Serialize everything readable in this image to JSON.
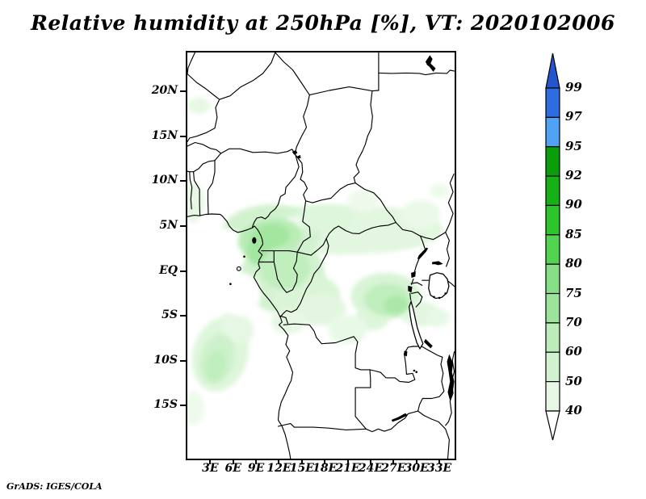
{
  "title": "Relative humidity at 250hPa [%], VT: 2020102006",
  "attribution": "GrADS: IGES/COLA",
  "chart_data": {
    "type": "heatmap",
    "title": "Relative humidity at 250hPa [%], VT: 2020102006",
    "variable": "Relative humidity",
    "level": "250hPa",
    "units": "%",
    "valid_time": "2020102006",
    "projection": "latlon",
    "lon_range_deg_east": [
      0,
      35
    ],
    "lat_range_deg": [
      -20.9,
      24.33
    ],
    "x_ticks": [
      "3E",
      "6E",
      "9E",
      "12E",
      "15E",
      "18E",
      "21E",
      "24E",
      "27E",
      "30E",
      "33E"
    ],
    "x_tick_lons": [
      3,
      6,
      9,
      12,
      15,
      18,
      21,
      24,
      27,
      30,
      33
    ],
    "y_ticks": [
      "20N",
      "15N",
      "10N",
      "5N",
      "EQ",
      "5S",
      "10S",
      "15S"
    ],
    "y_tick_lats": [
      20,
      15,
      10,
      5,
      0,
      -5,
      -10,
      -15
    ],
    "grid": "off",
    "legend_position": "right-colorbar",
    "colorbar": {
      "boundaries_top_to_bottom": [
        99,
        97,
        95,
        92,
        90,
        85,
        80,
        75,
        70,
        60,
        50,
        40
      ],
      "colors_top_to_bottom": [
        "#2355cf",
        "#2e6ce2",
        "#4fa3f2",
        "#0a9f0a",
        "#17b017",
        "#2ec42e",
        "#52d452",
        "#86de86",
        "#9ce49c",
        "#bcecb9",
        "#d2f2cf",
        "#e6f8e3",
        "#ffffff"
      ],
      "arrow_above_color": "#2355cf",
      "arrow_below_color": "#ffffff"
    },
    "map_line_color": "#000000",
    "shaded_features": [
      {
        "region": "Band along ~5N from Gulf of Guinea coast (7E) east to 34E",
        "rh_percent": "50-75"
      },
      {
        "region": "Cameroon / Gabon / Congo basin, 9E-20E, 2N-6S",
        "rh_percent": "50-70"
      },
      {
        "region": "Eastern DRC around 24E-30E, 1S-6S",
        "rh_percent": "50-70"
      },
      {
        "region": "SE Atlantic off Angola, 1E-9E, 5S-14S",
        "rh_percent": "50-65"
      },
      {
        "region": "Small patch near 1E-3E, 18N-19N",
        "rh_percent": "40-50"
      },
      {
        "region": "Remaining areas (Sahara, southern interior)",
        "rh_percent": "below 40 (unshaded)"
      }
    ]
  }
}
